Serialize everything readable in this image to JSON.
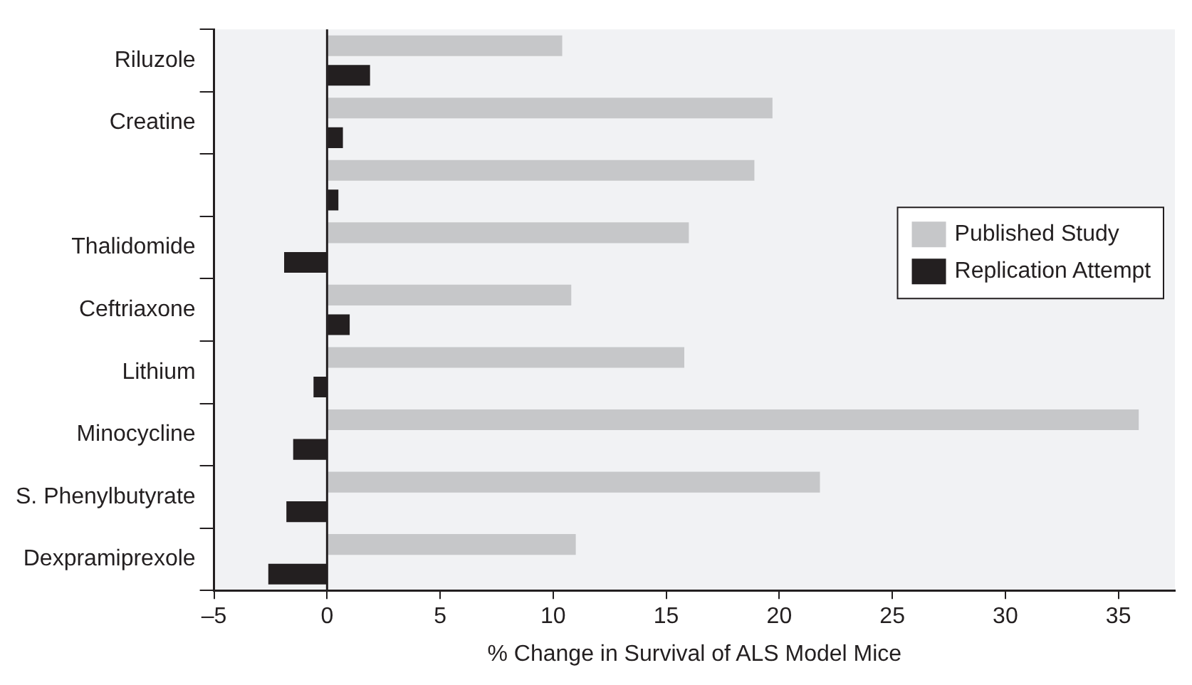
{
  "chart_data": {
    "type": "bar",
    "orientation": "horizontal",
    "xlabel": "% Change in Survival of ALS Model Mice",
    "categories": [
      "Riluzole",
      "Creatine",
      null,
      "Thalidomide",
      "Ceftriaxone",
      "Lithium",
      "Minocycline",
      "S. Phenylbutyrate",
      "Dexpramiprexole"
    ],
    "series": [
      {
        "name": "Published Study",
        "color": "#c6c7c9",
        "values": [
          10.4,
          19.7,
          18.9,
          16.0,
          10.8,
          15.8,
          35.9,
          21.8,
          11.0
        ]
      },
      {
        "name": "Replication Attempt",
        "color": "#231f20",
        "values": [
          1.9,
          0.7,
          0.5,
          -1.9,
          1.0,
          -0.6,
          -1.5,
          -1.8,
          -2.6
        ]
      }
    ],
    "xlim": [
      -5,
      37.5
    ],
    "xticks": [
      {
        "value": -5,
        "label": "–5"
      },
      0,
      5,
      10,
      15,
      20,
      25,
      30,
      35
    ],
    "grid": false,
    "legend": "right",
    "ref_lines": [
      {
        "axis": "x",
        "value": 0,
        "color": "#231f20"
      }
    ]
  }
}
